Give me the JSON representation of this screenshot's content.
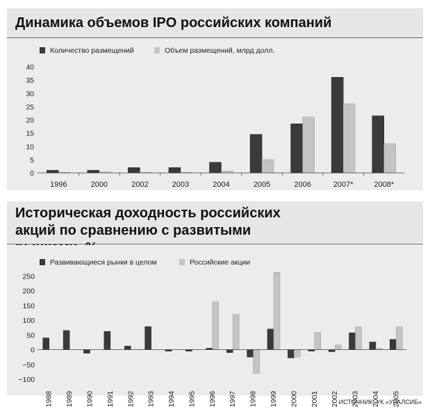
{
  "chart_data": [
    {
      "type": "bar",
      "title": "Динамика объемов IPO российских компаний",
      "categories": [
        "1996",
        "2000",
        "2002",
        "2003",
        "2004",
        "2005",
        "2006",
        "2007*",
        "2008*"
      ],
      "series": [
        {
          "name": "Количество размещений",
          "color": "#3a3a3a",
          "values": [
            1,
            1,
            2,
            2,
            4,
            14.5,
            18.5,
            36,
            21.5
          ]
        },
        {
          "name": "Объем размещений, млрд долл.",
          "color": "#c4c4c4",
          "values": [
            0.2,
            0.4,
            0.2,
            0.2,
            0.7,
            5,
            21,
            26,
            11
          ]
        }
      ],
      "yticks": [
        0,
        5,
        10,
        15,
        20,
        25,
        30,
        35,
        40
      ],
      "ylim": [
        0,
        40
      ],
      "grid": false,
      "legend": "top-left"
    },
    {
      "type": "bar",
      "title": "Историческая доходность российских акций по сравнению с развитыми рынками, %",
      "categories": [
        "1988",
        "1989",
        "1990",
        "1991",
        "1992",
        "1993",
        "1994",
        "1995",
        "1996",
        "1997",
        "1998",
        "1999",
        "2000",
        "2001",
        "2002",
        "2003",
        "2004",
        "2005"
      ],
      "series": [
        {
          "name": "Развивающиеся рынки в целом",
          "color": "#3a3a3a",
          "values": [
            40,
            65,
            -12,
            62,
            12,
            78,
            -5,
            -5,
            5,
            -10,
            -25,
            70,
            -28,
            -5,
            -7,
            57,
            26,
            35
          ]
        },
        {
          "name": "Российские акции",
          "color": "#c4c4c4",
          "values": [
            null,
            null,
            null,
            null,
            null,
            null,
            null,
            null,
            162,
            120,
            -80,
            262,
            -25,
            58,
            16,
            77,
            5,
            77
          ]
        }
      ],
      "yticks": [
        -100,
        -50,
        0,
        50,
        100,
        150,
        200,
        250
      ],
      "ylim": [
        -100,
        265
      ],
      "grid": false,
      "legend": "top-left"
    }
  ],
  "source": "ИСТОЧНИК: УК «УРАЛСИБ»"
}
